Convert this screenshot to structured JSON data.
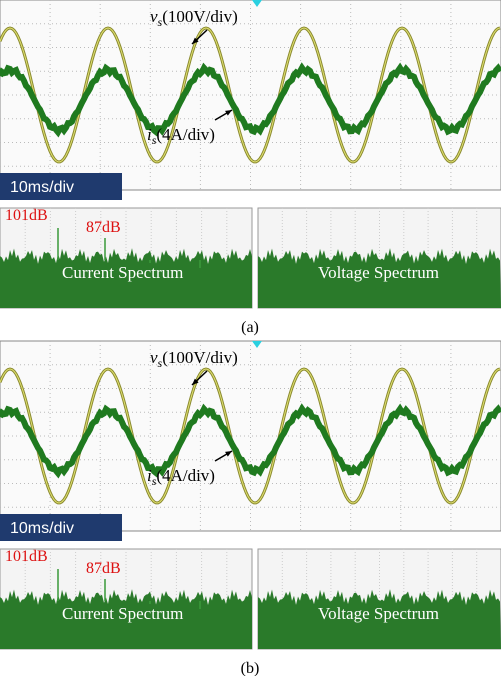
{
  "panels": [
    {
      "voltage_label": {
        "var": "v",
        "sub": "s",
        "text": "(100V/div)"
      },
      "current_label": {
        "var": "i",
        "sub": "s",
        "text": "(4A/div)"
      },
      "time_scale": "10ms/div",
      "peak_labels": [
        "101dB",
        "87dB"
      ],
      "current_spectrum": "Current Spectrum",
      "voltage_spectrum": "Voltage Spectrum",
      "caption": "(a)"
    },
    {
      "voltage_label": {
        "var": "v",
        "sub": "s",
        "text": "(100V/div)"
      },
      "current_label": {
        "var": "i",
        "sub": "s",
        "text": "(4A/div)"
      },
      "time_scale": "10ms/div",
      "peak_labels": [
        "101dB",
        "87dB"
      ],
      "current_spectrum": "Current Spectrum",
      "voltage_spectrum": "Voltage Spectrum",
      "caption": "(b)"
    }
  ]
}
